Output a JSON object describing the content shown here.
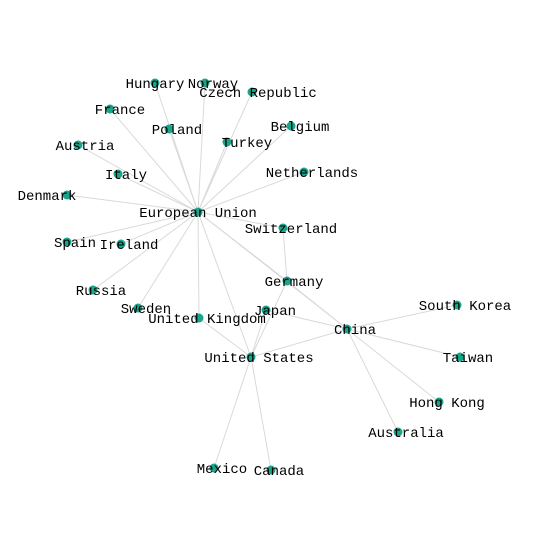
{
  "graph": {
    "node_color": "#1aa58a",
    "edge_color": "#d9d9d9",
    "nodes": [
      {
        "id": "eu",
        "label": "European Union"
      },
      {
        "id": "hungary",
        "label": "Hungary"
      },
      {
        "id": "norway",
        "label": "Norway"
      },
      {
        "id": "czech",
        "label": "Czech Republic"
      },
      {
        "id": "france",
        "label": "France"
      },
      {
        "id": "poland",
        "label": "Poland"
      },
      {
        "id": "belgium",
        "label": "Belgium"
      },
      {
        "id": "austria",
        "label": "Austria"
      },
      {
        "id": "turkey",
        "label": "Turkey"
      },
      {
        "id": "italy",
        "label": "Italy"
      },
      {
        "id": "netherlands",
        "label": "Netherlands"
      },
      {
        "id": "denmark",
        "label": "Denmark"
      },
      {
        "id": "switzerland",
        "label": "Switzerland"
      },
      {
        "id": "spain",
        "label": "Spain"
      },
      {
        "id": "ireland",
        "label": "Ireland"
      },
      {
        "id": "germany",
        "label": "Germany"
      },
      {
        "id": "russia",
        "label": "Russia"
      },
      {
        "id": "sweden",
        "label": "Sweden"
      },
      {
        "id": "uk",
        "label": "United Kingdom"
      },
      {
        "id": "japan",
        "label": "Japan"
      },
      {
        "id": "china",
        "label": "China"
      },
      {
        "id": "southkorea",
        "label": "South Korea"
      },
      {
        "id": "us",
        "label": "United States"
      },
      {
        "id": "taiwan",
        "label": "Taiwan"
      },
      {
        "id": "hongkong",
        "label": "Hong Kong"
      },
      {
        "id": "australia",
        "label": "Australia"
      },
      {
        "id": "mexico",
        "label": "Mexico"
      },
      {
        "id": "canada",
        "label": "Canada"
      }
    ],
    "edges": [
      [
        "eu",
        "hungary"
      ],
      [
        "eu",
        "norway"
      ],
      [
        "eu",
        "czech"
      ],
      [
        "eu",
        "france"
      ],
      [
        "eu",
        "poland"
      ],
      [
        "eu",
        "belgium"
      ],
      [
        "eu",
        "austria"
      ],
      [
        "eu",
        "turkey"
      ],
      [
        "eu",
        "italy"
      ],
      [
        "eu",
        "netherlands"
      ],
      [
        "eu",
        "denmark"
      ],
      [
        "eu",
        "switzerland"
      ],
      [
        "eu",
        "spain"
      ],
      [
        "eu",
        "ireland"
      ],
      [
        "eu",
        "germany"
      ],
      [
        "eu",
        "russia"
      ],
      [
        "eu",
        "sweden"
      ],
      [
        "eu",
        "uk"
      ],
      [
        "eu",
        "us"
      ],
      [
        "eu",
        "china"
      ],
      [
        "china",
        "southkorea"
      ],
      [
        "china",
        "taiwan"
      ],
      [
        "china",
        "hongkong"
      ],
      [
        "china",
        "australia"
      ],
      [
        "china",
        "us"
      ],
      [
        "china",
        "japan"
      ],
      [
        "china",
        "germany"
      ],
      [
        "us",
        "japan"
      ],
      [
        "us",
        "mexico"
      ],
      [
        "us",
        "canada"
      ],
      [
        "us",
        "germany"
      ],
      [
        "us",
        "uk"
      ],
      [
        "switzerland",
        "germany"
      ]
    ]
  }
}
